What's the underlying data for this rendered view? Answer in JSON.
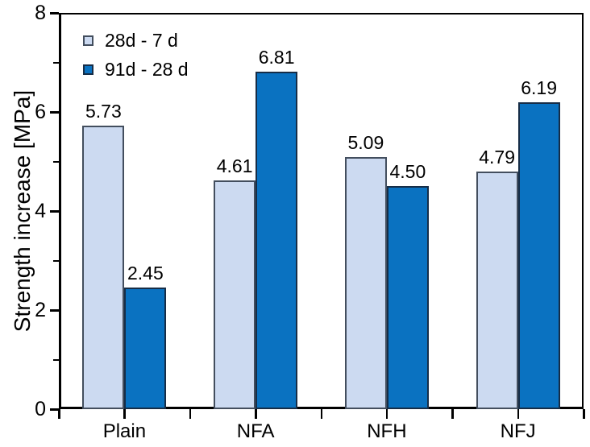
{
  "chart_data": {
    "type": "bar",
    "title": "",
    "xlabel": "",
    "ylabel": "Strength increase [MPa]",
    "categories": [
      "Plain",
      "NFA",
      "NFH",
      "NFJ"
    ],
    "series": [
      {
        "name": "28d - 7 d",
        "fill_color": "#ccdaf1",
        "border_color": "#434e5e",
        "values": [
          5.73,
          4.61,
          5.09,
          4.79
        ]
      },
      {
        "name": "91d - 28 d",
        "fill_color": "#0a72c1",
        "border_color": "#162d47",
        "values": [
          2.45,
          6.81,
          4.5,
          6.19
        ]
      }
    ],
    "value_labels": [
      "5.73",
      "2.45",
      "4.61",
      "6.81",
      "5.09",
      "4.50",
      "4.79",
      "6.19"
    ],
    "ylim": [
      0,
      8
    ],
    "yticks_major": [
      0,
      2,
      4,
      6,
      8
    ],
    "yticks_minor": [
      1,
      3,
      5,
      7
    ],
    "grid": false,
    "legend_position": "top-left",
    "frame": "full-box",
    "axis_color": "#000000"
  }
}
